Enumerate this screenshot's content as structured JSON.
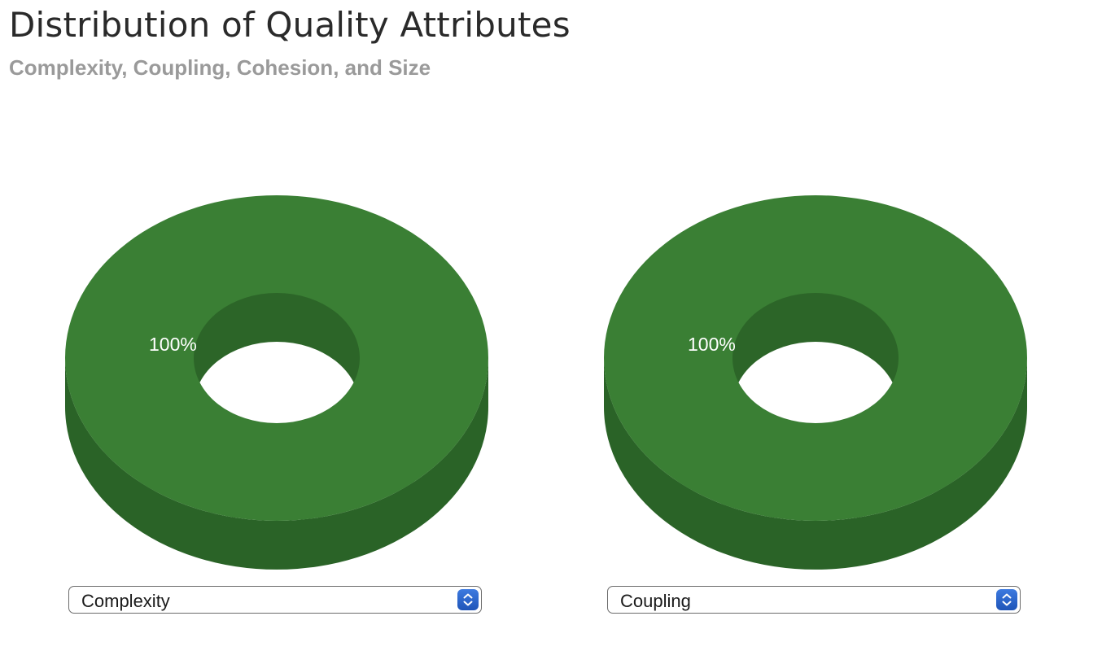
{
  "header": {
    "title": "Distribution of Quality Attributes",
    "subtitle": "Complexity, Coupling, Cohesion, and Size"
  },
  "colors": {
    "slice_top": "#3a7f34",
    "slice_side": "#2a6327",
    "slice_inner": "#2c6528",
    "background": "#ffffff",
    "stepper": "#2563c9"
  },
  "charts": [
    {
      "selector": {
        "selected": "Complexity"
      },
      "slice_label": "100%"
    },
    {
      "selector": {
        "selected": "Coupling"
      },
      "slice_label": "100%"
    }
  ],
  "chart_data": [
    {
      "type": "pie",
      "style": "3d-donut",
      "slices": [
        {
          "label": "100%",
          "value": 100,
          "color": "#3a7f34"
        }
      ]
    },
    {
      "type": "pie",
      "style": "3d-donut",
      "slices": [
        {
          "label": "100%",
          "value": 100,
          "color": "#3a7f34"
        }
      ]
    }
  ]
}
